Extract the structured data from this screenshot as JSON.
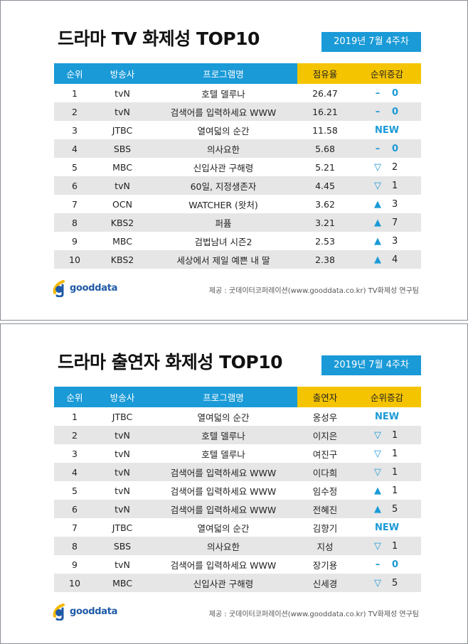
{
  "panels": [
    {
      "title": "드라마 TV 화제성 TOP10",
      "date": "2019년  7월 4주차",
      "headers": [
        "순위",
        "방송사",
        "프로그램명",
        "점유율",
        "순위증감"
      ],
      "rows": [
        {
          "rank": "1",
          "channel": "tvN",
          "program": "호텔 델루나",
          "value": "26.47",
          "change_type": "same",
          "change_symbol": "–",
          "change": "0"
        },
        {
          "rank": "2",
          "channel": "tvN",
          "program": "검색어를 입력하세요 WWW",
          "value": "16.21",
          "change_type": "same",
          "change_symbol": "–",
          "change": "0"
        },
        {
          "rank": "3",
          "channel": "JTBC",
          "program": "열여덟의 순간",
          "value": "11.58",
          "change_type": "new",
          "change_symbol": "",
          "change": "NEW"
        },
        {
          "rank": "4",
          "channel": "SBS",
          "program": "의사요한",
          "value": "5.68",
          "change_type": "same",
          "change_symbol": "–",
          "change": "0"
        },
        {
          "rank": "5",
          "channel": "MBC",
          "program": "신입사관 구해령",
          "value": "5.21",
          "change_type": "down",
          "change_symbol": "▽",
          "change": "2"
        },
        {
          "rank": "6",
          "channel": "tvN",
          "program": "60일, 지정생존자",
          "value": "4.45",
          "change_type": "down",
          "change_symbol": "▽",
          "change": "1"
        },
        {
          "rank": "7",
          "channel": "OCN",
          "program": "WATCHER (왓처)",
          "value": "3.62",
          "change_type": "up",
          "change_symbol": "▲",
          "change": "3"
        },
        {
          "rank": "8",
          "channel": "KBS2",
          "program": "퍼퓸",
          "value": "3.21",
          "change_type": "up",
          "change_symbol": "▲",
          "change": "7"
        },
        {
          "rank": "9",
          "channel": "MBC",
          "program": "검법남녀 시즌2",
          "value": "2.53",
          "change_type": "up",
          "change_symbol": "▲",
          "change": "3"
        },
        {
          "rank": "10",
          "channel": "KBS2",
          "program": "세상에서 제일 예쁜 내 딸",
          "value": "2.38",
          "change_type": "up",
          "change_symbol": "▲",
          "change": "4"
        }
      ],
      "logo": "gooddata",
      "source": "제공 : 굿데이터코퍼레이션(www.gooddata.co.kr) TV화제성 연구팀"
    },
    {
      "title": "드라마 출연자 화제성 TOP10",
      "date": "2019년  7월 4주차",
      "headers": [
        "순위",
        "방송사",
        "프로그램명",
        "출연자",
        "순위증감"
      ],
      "rows": [
        {
          "rank": "1",
          "channel": "JTBC",
          "program": "열여덟의 순간",
          "value": "옹성우",
          "change_type": "new",
          "change_symbol": "",
          "change": "NEW"
        },
        {
          "rank": "2",
          "channel": "tvN",
          "program": "호텔 델루나",
          "value": "이지은",
          "change_type": "down",
          "change_symbol": "▽",
          "change": "1"
        },
        {
          "rank": "3",
          "channel": "tvN",
          "program": "호텔 델루나",
          "value": "여진구",
          "change_type": "down",
          "change_symbol": "▽",
          "change": "1"
        },
        {
          "rank": "4",
          "channel": "tvN",
          "program": "검색어를 입력하세요 WWW",
          "value": "이다희",
          "change_type": "down",
          "change_symbol": "▽",
          "change": "1"
        },
        {
          "rank": "5",
          "channel": "tvN",
          "program": "검색어를 입력하세요 WWW",
          "value": "임수정",
          "change_type": "up",
          "change_symbol": "▲",
          "change": "1"
        },
        {
          "rank": "6",
          "channel": "tvN",
          "program": "검색어를 입력하세요 WWW",
          "value": "전혜진",
          "change_type": "up",
          "change_symbol": "▲",
          "change": "5"
        },
        {
          "rank": "7",
          "channel": "JTBC",
          "program": "열여덟의 순간",
          "value": "김향기",
          "change_type": "new",
          "change_symbol": "",
          "change": "NEW"
        },
        {
          "rank": "8",
          "channel": "SBS",
          "program": "의사요한",
          "value": "지성",
          "change_type": "down",
          "change_symbol": "▽",
          "change": "1"
        },
        {
          "rank": "9",
          "channel": "tvN",
          "program": "검색어를 입력하세요 WWW",
          "value": "장기용",
          "change_type": "same",
          "change_symbol": "–",
          "change": "0"
        },
        {
          "rank": "10",
          "channel": "MBC",
          "program": "신입사관 구해령",
          "value": "신세경",
          "change_type": "down",
          "change_symbol": "▽",
          "change": "5"
        }
      ],
      "logo": "gooddata",
      "source": "제공 : 굿데이터코퍼레이션(www.gooddata.co.kr) TV화제성 연구팀"
    }
  ],
  "colors": {
    "header_blue": "#1a9ad7",
    "header_yellow": "#f5c400",
    "row_alt": "#e6e6e6",
    "logo_blue": "#1f5aa6",
    "logo_yellow": "#f5b800"
  }
}
